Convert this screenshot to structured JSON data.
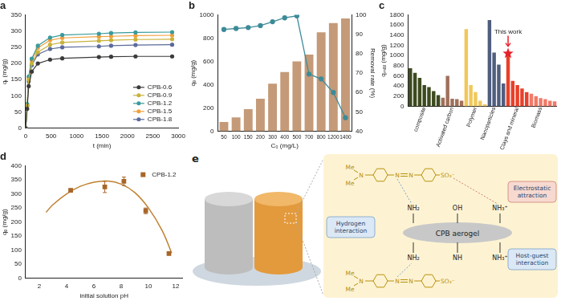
{
  "chart_data": [
    {
      "title": "a",
      "type": "line",
      "x_label": "t (min)",
      "y_label": "qₜ (mg/g)",
      "x": [
        0,
        30,
        60,
        120,
        240,
        480,
        720,
        1440,
        1680,
        2160,
        2880
      ],
      "xlim": [
        0,
        3000
      ],
      "xticks": [
        0,
        500,
        1000,
        1500,
        2000,
        2500,
        3000
      ],
      "ylim": [
        0,
        350
      ],
      "yticks": [
        0,
        50,
        100,
        150,
        200,
        250,
        300,
        350
      ],
      "legend": "lower right",
      "marker": "circle",
      "series": [
        {
          "name": "CPB-0.6",
          "color": "#3b3b3b",
          "values": [
            0,
            60,
            130,
            175,
            200,
            212,
            216,
            220,
            221,
            222,
            222
          ]
        },
        {
          "name": "CPB-0.9",
          "color": "#c9b23a",
          "values": [
            0,
            70,
            150,
            200,
            235,
            258,
            265,
            270,
            272,
            274,
            275
          ]
        },
        {
          "name": "CPB-1.2",
          "color": "#3a9a9c",
          "values": [
            0,
            75,
            160,
            215,
            255,
            280,
            288,
            292,
            294,
            296,
            297
          ]
        },
        {
          "name": "CPB-1.5",
          "color": "#f0a03c",
          "values": [
            0,
            72,
            155,
            210,
            248,
            272,
            279,
            283,
            284,
            286,
            287
          ]
        },
        {
          "name": "CPB-1.8",
          "color": "#5a6a9a",
          "values": [
            0,
            68,
            145,
            195,
            228,
            245,
            250,
            253,
            255,
            257,
            258
          ]
        }
      ]
    },
    {
      "title": "b",
      "type": "bar",
      "x_label": "C₀ (mg/L)",
      "y_label": "qₑ (mg/g)",
      "y2_label": "Removal rate (%)",
      "categories": [
        "50",
        "100",
        "150",
        "200",
        "300",
        "400",
        "500",
        "700",
        "800",
        "1200",
        "1400"
      ],
      "ylim": [
        0,
        1000
      ],
      "yticks": [
        0,
        200,
        400,
        600,
        800,
        1000
      ],
      "y2lim": [
        40,
        100
      ],
      "y2ticks": [
        40,
        50,
        60,
        70,
        80,
        90,
        100
      ],
      "series": [
        {
          "type": "bar",
          "color": "#c49a78",
          "values": [
            80,
            120,
            190,
            280,
            410,
            510,
            600,
            660,
            850,
            930,
            970
          ]
        },
        {
          "type": "line",
          "axis": "y2",
          "color": "#3d8b99",
          "marker": "circle",
          "values": [
            92.5,
            93,
            93.5,
            94.5,
            96.5,
            98.5,
            99.5,
            69.5,
            67,
            60,
            47
          ]
        }
      ]
    },
    {
      "title": "c",
      "type": "bar",
      "y_label": "qₘₐₓ (mg/g)",
      "categories": [
        null,
        null,
        null,
        "composite",
        null,
        null,
        null,
        null,
        null,
        "Activated carbon",
        null,
        null,
        null,
        null,
        "Polymer",
        null,
        null,
        null,
        "Nanoparticles",
        null,
        null,
        null,
        null,
        "Clays and mineral",
        null,
        null,
        null,
        null,
        "Biomass",
        null,
        null,
        null
      ],
      "values": [
        750,
        660,
        560,
        420,
        380,
        300,
        220,
        170,
        600,
        150,
        140,
        110,
        1520,
        420,
        280,
        110,
        40,
        1700,
        1060,
        820,
        450,
        1010,
        500,
        420,
        350,
        280,
        250,
        200,
        160,
        140,
        110,
        100
      ],
      "colors": [
        "#3d4a1f",
        "#3d4a1f",
        "#3d4a1f",
        "#3d4a1f",
        "#3d4a1f",
        "#3d4a1f",
        "#3d4a1f",
        "#a0705a",
        "#a0705a",
        "#a0705a",
        "#a0705a",
        "#a0705a",
        "#f0c85a",
        "#f0c85a",
        "#f0c85a",
        "#f0c85a",
        "#f0c85a",
        "#4f5d7e",
        "#4f5d7e",
        "#4f5d7e",
        "#4f5d7e",
        "#e8402a",
        "#e8402a",
        "#e8402a",
        "#e8402a",
        "#e8402a",
        "#f07a68",
        "#f07a68",
        "#f07a68",
        "#f07a68",
        "#f07a68",
        "#f07a68"
      ],
      "ylim": [
        0,
        1800
      ],
      "yticks": [
        0,
        200,
        400,
        600,
        800,
        1000,
        1200,
        1400,
        1600,
        1800
      ],
      "annotations": [
        {
          "text": "This work",
          "x": 21
        }
      ]
    },
    {
      "title": "d",
      "type": "scatter",
      "x_label": "initial solution pH",
      "y_label": "qₑ (mg/g)",
      "xlim": [
        1,
        12.5
      ],
      "xticks": [
        2,
        4,
        6,
        8,
        10,
        12
      ],
      "ylim": [
        0,
        400
      ],
      "yticks": [
        0,
        50,
        100,
        150,
        200,
        250,
        300,
        350,
        400
      ],
      "legend": "upper right",
      "series": [
        {
          "name": "CPB-1.2",
          "color": "#a8662a",
          "marker": "square",
          "x": [
            4.3,
            6.8,
            8.2,
            9.8,
            11.5
          ],
          "values": [
            313,
            325,
            345,
            240,
            88
          ],
          "error": [
            5,
            20,
            15,
            10,
            5
          ]
        },
        {
          "type": "line",
          "color": "#c08030",
          "x": [
            2.5,
            3,
            4,
            5,
            6,
            7,
            8,
            9,
            10,
            11,
            11.7
          ],
          "values": [
            235,
            262,
            300,
            327,
            342,
            346,
            335,
            305,
            250,
            170,
            90
          ]
        }
      ]
    }
  ],
  "diagram": {
    "title": "e",
    "center": "CPB aerogel",
    "groups_top": [
      "NH₂",
      "OH",
      "NH₃⁺"
    ],
    "groups_bottom": [
      "NH₂",
      "NH",
      "NH₃⁺"
    ],
    "interactions": [
      "Hydrogen interaction",
      "Electrostatic attraction",
      "Host-guest interaction"
    ],
    "molecule": [
      "Me",
      "N",
      "Me",
      "N",
      "N",
      "SO₃⁻"
    ]
  }
}
